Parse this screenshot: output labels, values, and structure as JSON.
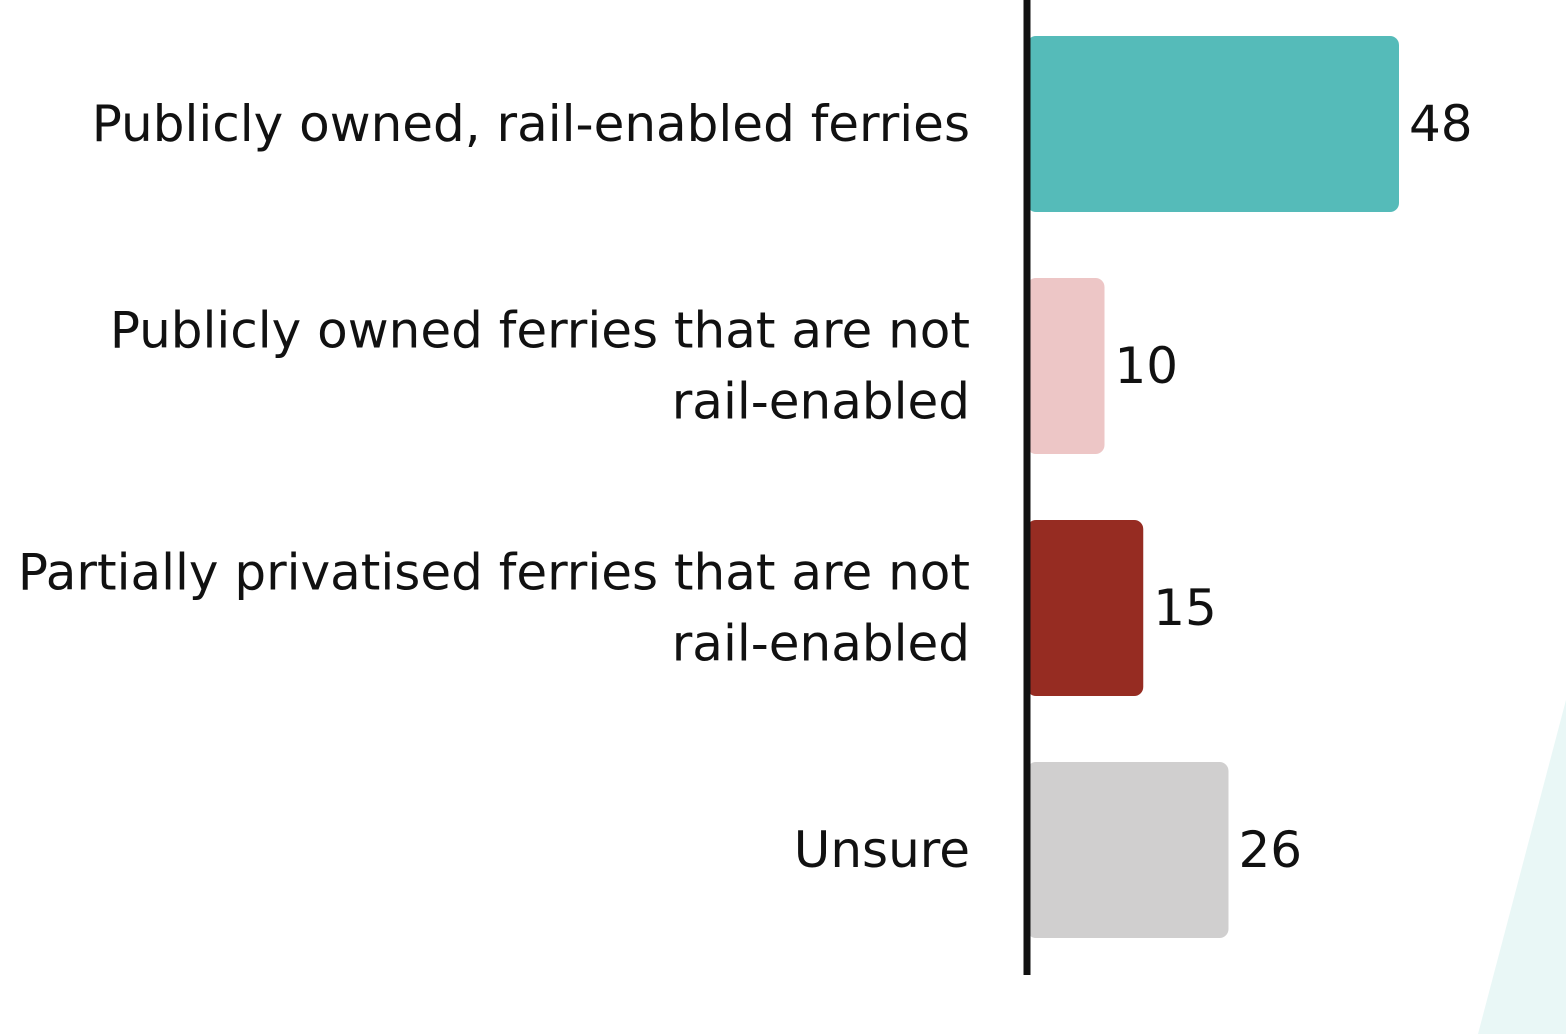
{
  "chart_data": {
    "type": "bar",
    "orientation": "horizontal",
    "title": "",
    "xlabel": "",
    "ylabel": "",
    "categories": [
      [
        "Publicly owned, rail-enabled ferries"
      ],
      [
        "Publicly owned ferries that are not",
        "rail-enabled"
      ],
      [
        "Partially privatised ferries that are not",
        "rail-enabled"
      ],
      [
        "Unsure"
      ]
    ],
    "values": [
      48,
      10,
      15,
      26
    ],
    "value_labels": [
      "48",
      "10",
      "15",
      "26"
    ],
    "colors": [
      "#55bbb9",
      "#edc6c6",
      "#962c22",
      "#d0cfcf"
    ],
    "xlim": [
      0,
      60
    ],
    "grid": false,
    "legend": "none"
  },
  "decor": {
    "accent_color": "#e9f7f6",
    "axis_color": "#111111"
  }
}
